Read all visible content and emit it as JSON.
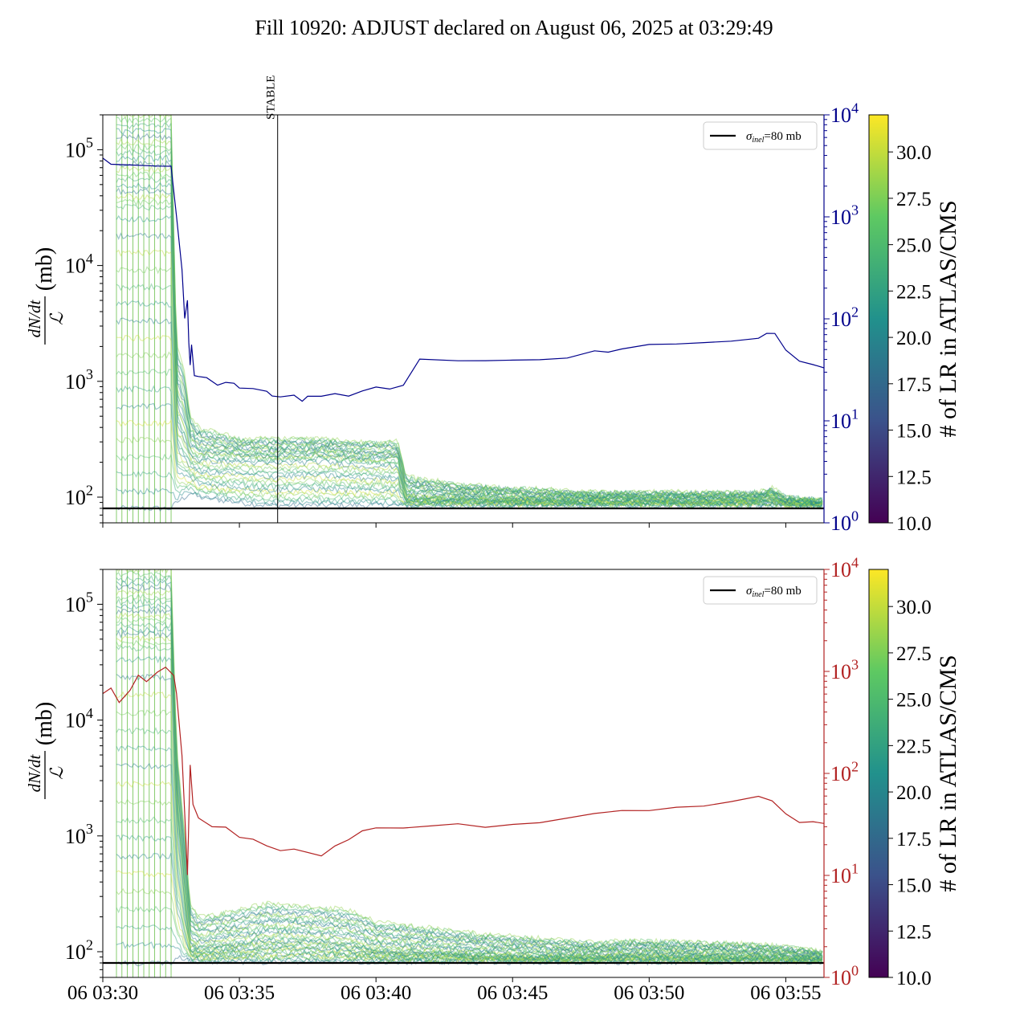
{
  "title": "Fill 10920: ADJUST declared on August 06, 2025 at 03:29:49",
  "colors": {
    "top_ratio_line": "#00008b",
    "bottom_ratio_line": "#b22222",
    "reference_line": "#000000",
    "colormap": [
      "#440154",
      "#3b528b",
      "#21918c",
      "#5ec962",
      "#fde725"
    ]
  },
  "chart_data": [
    {
      "type": "line",
      "panel": "top",
      "ylabel": "dN/dt / ℒ (mb)",
      "y_scale": "log",
      "ylim": [
        60,
        200000
      ],
      "y_ticks": [
        {
          "value": 100,
          "label": "10",
          "exp": "2"
        },
        {
          "value": 1000,
          "label": "10",
          "exp": "3"
        },
        {
          "value": 10000,
          "label": "10",
          "exp": "4"
        },
        {
          "value": 100000,
          "label": "10",
          "exp": "5"
        }
      ],
      "x_ticks": [
        "06 03:30",
        "06 03:35",
        "06 03:40",
        "06 03:45",
        "06 03:50",
        "06 03:55"
      ],
      "x_range_minutes": [
        0,
        26.4
      ],
      "x_tick_minutes": [
        0,
        5,
        10,
        15,
        20,
        25
      ],
      "annotation": {
        "label": "STABLE",
        "x_minutes": 6.4
      },
      "legend": {
        "position": "top-right",
        "entry": "σ",
        "sub": "inel",
        "suffix": "=80 mb"
      },
      "reference_value_mb": 80,
      "secondary_axis": {
        "scale": "log",
        "range": [
          1,
          10000
        ],
        "color": "#00008b",
        "ticks": [
          {
            "value": 1,
            "label": "10",
            "exp": "0"
          },
          {
            "value": 10,
            "label": "10",
            "exp": "1"
          },
          {
            "value": 100,
            "label": "10",
            "exp": "2"
          },
          {
            "value": 1000,
            "label": "10",
            "exp": "3"
          },
          {
            "value": 10000,
            "label": "10",
            "exp": "4"
          }
        ]
      },
      "secondary_series": {
        "x_minutes": [
          0,
          0.3,
          1.0,
          2.0,
          2.5,
          2.7,
          2.9,
          3.0,
          3.1,
          3.15,
          3.2,
          3.25,
          3.35,
          3.5,
          3.8,
          4.2,
          4.5,
          4.8,
          5.0,
          5.5,
          6.0,
          6.2,
          6.5,
          7.0,
          7.3,
          7.5,
          8.0,
          8.5,
          9.0,
          9.5,
          10.0,
          10.5,
          11.0,
          11.3,
          11.6,
          13,
          14,
          15,
          16,
          17,
          18,
          18.5,
          19,
          20,
          21,
          22,
          23,
          24,
          24.3,
          24.6,
          25,
          25.5,
          26,
          26.4
        ],
        "values": [
          3800,
          3300,
          3200,
          3200,
          3200,
          1000,
          300,
          100,
          150,
          60,
          35,
          55,
          28,
          27,
          26,
          23,
          24,
          23,
          21,
          21,
          20,
          18,
          17,
          18,
          16,
          17,
          17,
          18,
          18,
          20,
          21,
          21,
          22,
          30,
          40,
          40,
          40,
          40,
          40,
          42,
          48,
          48,
          50,
          55,
          56,
          58,
          60,
          65,
          72,
          70,
          50,
          38,
          35,
          34
        ]
      },
      "main_series_envelope": {
        "x_minutes": [
          0.5,
          2.5,
          2.7,
          3.0,
          3.2,
          3.5,
          5.0,
          6.0,
          8.0,
          9.5,
          10.0,
          10.8,
          11.1,
          13,
          15,
          18,
          20,
          22,
          24,
          24.5,
          25,
          26.4
        ],
        "upper_mb": [
          200000,
          200000,
          2000,
          1200,
          500,
          400,
          320,
          320,
          320,
          300,
          300,
          300,
          150,
          130,
          120,
          110,
          110,
          110,
          110,
          120,
          100,
          95
        ],
        "median_mb": [
          30000,
          30000,
          500,
          350,
          250,
          220,
          220,
          210,
          220,
          200,
          200,
          200,
          100,
          100,
          95,
          95,
          95,
          95,
          95,
          100,
          90,
          88
        ],
        "lower_mb": [
          80,
          80,
          90,
          100,
          110,
          100,
          90,
          85,
          85,
          85,
          85,
          85,
          85,
          85,
          85,
          85,
          85,
          85,
          85,
          85,
          85,
          85
        ]
      },
      "colorbar": {
        "label": "# of LR in ATLAS/CMS",
        "range": [
          10,
          32
        ],
        "ticks": [
          10.0,
          12.5,
          15.0,
          17.5,
          20.0,
          22.5,
          25.0,
          27.5,
          30.0
        ]
      }
    },
    {
      "type": "line",
      "panel": "bottom",
      "ylabel": "dN/dt / ℒ (mb)",
      "y_scale": "log",
      "ylim": [
        60,
        200000
      ],
      "y_ticks": [
        {
          "value": 100,
          "label": "10",
          "exp": "2"
        },
        {
          "value": 1000,
          "label": "10",
          "exp": "3"
        },
        {
          "value": 10000,
          "label": "10",
          "exp": "4"
        },
        {
          "value": 100000,
          "label": "10",
          "exp": "5"
        }
      ],
      "x_ticks": [
        "06 03:30",
        "06 03:35",
        "06 03:40",
        "06 03:45",
        "06 03:50",
        "06 03:55"
      ],
      "x_range_minutes": [
        0,
        26.4
      ],
      "x_tick_minutes": [
        0,
        5,
        10,
        15,
        20,
        25
      ],
      "legend": {
        "position": "top-right",
        "entry": "σ",
        "sub": "inel",
        "suffix": "=80 mb"
      },
      "reference_value_mb": 80,
      "secondary_axis": {
        "scale": "log",
        "range": [
          1,
          10000
        ],
        "color": "#b22222",
        "ticks": [
          {
            "value": 1,
            "label": "10",
            "exp": "0"
          },
          {
            "value": 10,
            "label": "10",
            "exp": "1"
          },
          {
            "value": 100,
            "label": "10",
            "exp": "2"
          },
          {
            "value": 1000,
            "label": "10",
            "exp": "3"
          },
          {
            "value": 10000,
            "label": "10",
            "exp": "4"
          }
        ]
      },
      "secondary_series": {
        "x_minutes": [
          0,
          0.3,
          0.6,
          1.0,
          1.3,
          1.6,
          2.0,
          2.3,
          2.6,
          2.7,
          2.9,
          3.0,
          3.1,
          3.2,
          3.3,
          3.5,
          4.0,
          4.5,
          5.0,
          5.5,
          6.0,
          6.5,
          7.0,
          8.0,
          8.5,
          9.0,
          9.5,
          10.0,
          11,
          12,
          13,
          14,
          15,
          16,
          17,
          18,
          19,
          20,
          21,
          22,
          23,
          24,
          24.5,
          25,
          25.5,
          26,
          26.4
        ],
        "values": [
          600,
          700,
          500,
          650,
          900,
          800,
          1000,
          1100,
          900,
          600,
          150,
          40,
          10,
          120,
          50,
          36,
          30,
          30,
          24,
          22,
          19,
          18,
          18,
          16,
          20,
          22,
          27,
          30,
          30,
          31,
          32,
          30,
          31,
          33,
          37,
          40,
          42,
          44,
          46,
          48,
          52,
          60,
          55,
          40,
          34,
          33,
          32
        ]
      },
      "main_series_envelope": {
        "x_minutes": [
          0.5,
          2.5,
          2.7,
          3.0,
          3.2,
          3.5,
          5.0,
          6.0,
          8.0,
          9.0,
          10.0,
          12,
          14,
          16,
          18,
          20,
          22,
          24,
          25,
          26.4
        ],
        "upper_mb": [
          200000,
          200000,
          6000,
          1000,
          250,
          200,
          230,
          260,
          240,
          230,
          180,
          160,
          140,
          130,
          120,
          125,
          120,
          115,
          110,
          100
        ],
        "median_mb": [
          40000,
          40000,
          1500,
          300,
          120,
          110,
          120,
          130,
          125,
          120,
          105,
          100,
          95,
          92,
          92,
          95,
          92,
          92,
          90,
          88
        ],
        "lower_mb": [
          80,
          80,
          90,
          85,
          82,
          82,
          82,
          82,
          82,
          82,
          82,
          82,
          82,
          82,
          82,
          82,
          82,
          82,
          82,
          82
        ]
      },
      "colorbar": {
        "label": "# of LR in ATLAS/CMS",
        "range": [
          10,
          32
        ],
        "ticks": [
          10.0,
          12.5,
          15.0,
          17.5,
          20.0,
          22.5,
          25.0,
          27.5,
          30.0
        ]
      }
    }
  ]
}
